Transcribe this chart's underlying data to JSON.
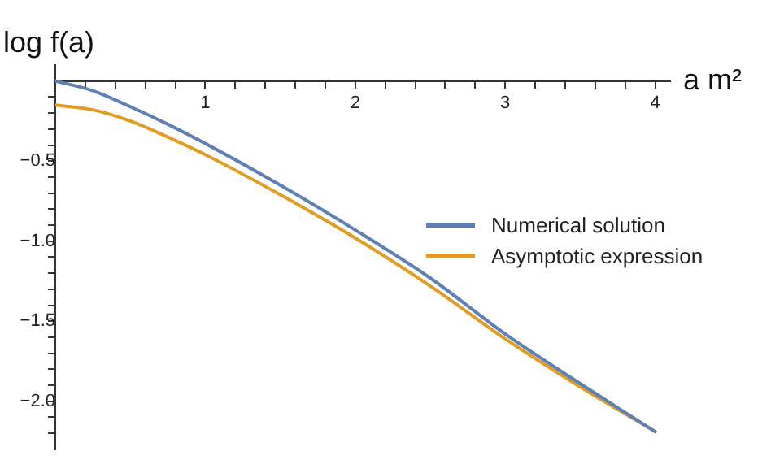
{
  "chart_data": {
    "type": "line",
    "xlabel": "a m²",
    "ylabel": "log f(a)",
    "xlim": [
      0,
      4.1
    ],
    "ylim": [
      -2.3,
      0.1
    ],
    "xticks": [
      {
        "value": 0.2,
        "label": null
      },
      {
        "value": 0.4,
        "label": null
      },
      {
        "value": 0.6,
        "label": null
      },
      {
        "value": 0.8,
        "label": null
      },
      1,
      {
        "value": 1.2,
        "label": null
      },
      {
        "value": 1.4,
        "label": null
      },
      {
        "value": 1.6,
        "label": null
      },
      {
        "value": 1.8,
        "label": null
      },
      2,
      {
        "value": 2.2,
        "label": null
      },
      {
        "value": 2.4,
        "label": null
      },
      {
        "value": 2.6,
        "label": null
      },
      {
        "value": 2.8,
        "label": null
      },
      3,
      {
        "value": 3.2,
        "label": null
      },
      {
        "value": 3.4,
        "label": null
      },
      {
        "value": 3.6,
        "label": null
      },
      {
        "value": 3.8,
        "label": null
      },
      4
    ],
    "yticks": [
      {
        "value": -0.1,
        "label": null
      },
      {
        "value": -0.2,
        "label": null
      },
      {
        "value": -0.3,
        "label": null
      },
      {
        "value": -0.4,
        "label": null
      },
      {
        "value": -0.5,
        "label": "−0.5"
      },
      {
        "value": -0.6,
        "label": null
      },
      {
        "value": -0.7,
        "label": null
      },
      {
        "value": -0.8,
        "label": null
      },
      {
        "value": -0.9,
        "label": null
      },
      {
        "value": -1.0,
        "label": "−1.0"
      },
      {
        "value": -1.1,
        "label": null
      },
      {
        "value": -1.2,
        "label": null
      },
      {
        "value": -1.3,
        "label": null
      },
      {
        "value": -1.4,
        "label": null
      },
      {
        "value": -1.5,
        "label": "−1.5"
      },
      {
        "value": -1.6,
        "label": null
      },
      {
        "value": -1.7,
        "label": null
      },
      {
        "value": -1.8,
        "label": null
      },
      {
        "value": -1.9,
        "label": null
      },
      {
        "value": -2.0,
        "label": "−2.0"
      },
      {
        "value": -2.1,
        "label": null
      },
      {
        "value": -2.2,
        "label": null
      }
    ],
    "x": [
      0,
      0.25,
      0.5,
      0.75,
      1,
      1.5,
      2,
      2.5,
      3,
      3.5,
      4
    ],
    "series": [
      {
        "name": "Numerical solution",
        "color": "#5e81b5",
        "values": [
          0,
          -0.06,
          -0.16,
          -0.27,
          -0.39,
          -0.65,
          -0.93,
          -1.23,
          -1.58,
          -1.89,
          -2.19
        ]
      },
      {
        "name": "Asymptotic expression",
        "color": "#e19c24",
        "values": [
          -0.15,
          -0.18,
          -0.25,
          -0.35,
          -0.46,
          -0.71,
          -0.98,
          -1.28,
          -1.61,
          -1.91,
          -2.19
        ]
      }
    ],
    "grid": false,
    "legend": "right",
    "marker": "none",
    "line_style": "solid"
  }
}
